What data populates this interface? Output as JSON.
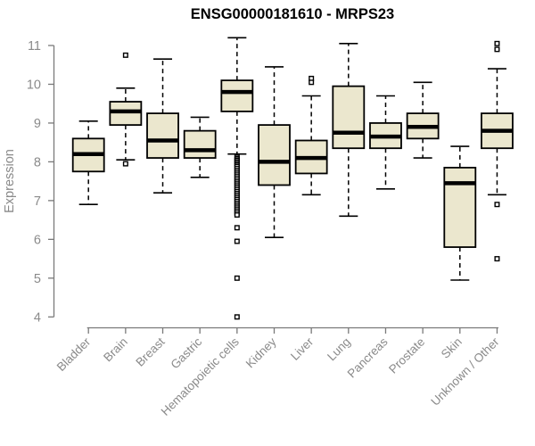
{
  "page": {
    "background": "#ffffff"
  },
  "chart_data": {
    "type": "boxplot",
    "title": "ENSG00000181610 - MRPS23",
    "xlabel": "",
    "ylabel": "Expression",
    "ylim": [
      4,
      11
    ],
    "yticks": [
      4,
      5,
      6,
      7,
      8,
      9,
      10,
      11
    ],
    "grid": false,
    "legend": false,
    "categories": [
      "Bladder",
      "Brain",
      "Breast",
      "Gastric",
      "Hematopoietic cells",
      "Kidney",
      "Liver",
      "Lung",
      "Pancreas",
      "Prostate",
      "Skin",
      "Unknown / Other"
    ],
    "series": [
      {
        "name": "Bladder",
        "low": 6.9,
        "q1": 7.75,
        "median": 8.2,
        "q3": 8.6,
        "high": 9.05,
        "outliers": []
      },
      {
        "name": "Brain",
        "low": 8.05,
        "q1": 8.95,
        "median": 9.3,
        "q3": 9.55,
        "high": 9.9,
        "outliers": [
          10.75,
          7.95
        ]
      },
      {
        "name": "Breast",
        "low": 7.2,
        "q1": 8.1,
        "median": 8.55,
        "q3": 9.25,
        "high": 10.65,
        "outliers": []
      },
      {
        "name": "Gastric",
        "low": 7.6,
        "q1": 8.1,
        "median": 8.3,
        "q3": 8.8,
        "high": 9.15,
        "outliers": []
      },
      {
        "name": "Hematopoietic cells",
        "low": 8.2,
        "q1": 9.3,
        "median": 9.8,
        "q3": 10.1,
        "high": 11.2,
        "outliers": [
          8.12,
          8.08,
          8.04,
          8.0,
          7.96,
          7.92,
          7.88,
          7.83,
          7.78,
          7.73,
          7.68,
          7.63,
          7.58,
          7.53,
          7.48,
          7.43,
          7.38,
          7.33,
          7.28,
          7.23,
          7.18,
          7.13,
          7.08,
          7.03,
          6.98,
          6.93,
          6.88,
          6.83,
          6.78,
          6.73,
          6.68,
          6.63,
          6.3,
          5.95,
          5.0,
          4.0
        ]
      },
      {
        "name": "Kidney",
        "low": 6.05,
        "q1": 7.4,
        "median": 8.0,
        "q3": 8.95,
        "high": 10.45,
        "outliers": []
      },
      {
        "name": "Liver",
        "low": 7.15,
        "q1": 7.7,
        "median": 8.1,
        "q3": 8.55,
        "high": 9.7,
        "outliers": [
          10.15,
          10.05
        ]
      },
      {
        "name": "Lung",
        "low": 6.6,
        "q1": 8.35,
        "median": 8.75,
        "q3": 9.95,
        "high": 11.05,
        "outliers": []
      },
      {
        "name": "Pancreas",
        "low": 7.3,
        "q1": 8.35,
        "median": 8.65,
        "q3": 9.0,
        "high": 9.7,
        "outliers": []
      },
      {
        "name": "Prostate",
        "low": 8.1,
        "q1": 8.6,
        "median": 8.9,
        "q3": 9.25,
        "high": 10.05,
        "outliers": []
      },
      {
        "name": "Skin",
        "low": 4.95,
        "q1": 5.8,
        "median": 7.45,
        "q3": 7.85,
        "high": 8.4,
        "outliers": []
      },
      {
        "name": "Unknown / Other",
        "low": 7.15,
        "q1": 8.35,
        "median": 8.8,
        "q3": 9.25,
        "high": 10.4,
        "outliers": [
          11.05,
          10.9,
          6.9,
          5.5
        ]
      }
    ],
    "colors": {
      "box_fill": "#EBE7CE",
      "box_stroke": "#000000",
      "median": "#000000",
      "whisker": "#000000",
      "outlier_fill": "#ffffff",
      "outlier_stroke": "#000000",
      "axis": "#7a7a7a",
      "tick_text": "#8a8a8a",
      "title": "#000000",
      "background": "#ffffff"
    }
  }
}
